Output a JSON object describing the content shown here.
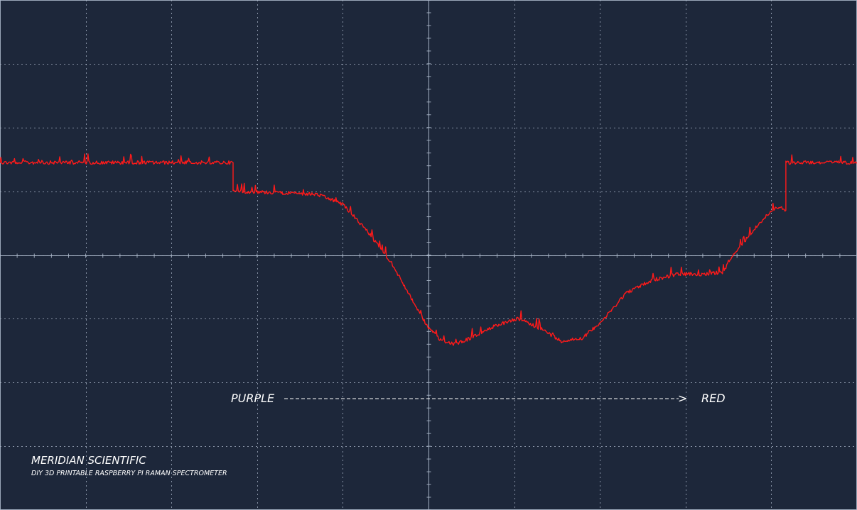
{
  "chart_data": {
    "type": "line",
    "title": "",
    "xlabel": "",
    "ylabel": "",
    "grid": true,
    "xlim": [
      0,
      10
    ],
    "ylim": [
      -4,
      4
    ],
    "divisions": {
      "x": 10,
      "y": 8
    },
    "colors": {
      "background": "#1d273a",
      "grid": "#aab6c8",
      "trace": "#ff1a1a",
      "text": "#ffffff"
    },
    "series": [
      {
        "x": [
          0,
          2.72,
          2.72,
          3.2,
          3.7,
          4.0,
          4.3,
          4.6,
          4.85,
          5.0,
          5.15,
          5.3,
          5.5,
          5.8,
          6.05,
          6.3,
          6.55,
          6.8,
          7.05,
          7.3,
          7.6,
          7.9,
          8.2,
          8.45,
          8.5,
          8.65,
          8.8,
          9.0,
          9.1,
          9.17,
          9.17,
          10
        ],
        "y": [
          1.45,
          1.45,
          1.0,
          0.98,
          0.95,
          0.8,
          0.35,
          -0.2,
          -0.8,
          -1.15,
          -1.35,
          -1.4,
          -1.3,
          -1.1,
          -1.0,
          -1.15,
          -1.35,
          -1.3,
          -1.0,
          -0.6,
          -0.4,
          -0.3,
          -0.3,
          -0.27,
          -0.1,
          0.15,
          0.4,
          0.7,
          0.75,
          0.7,
          1.45,
          1.45
        ]
      }
    ],
    "annotations": {
      "start": "PURPLE",
      "end": "RED",
      "arrow": ">"
    }
  },
  "branding": {
    "company": "MERIDIAN SCIENTIFIC",
    "tagline": "DIY 3D PRINTABLE RASPBERRY PI RAMAN SPECTROMETER"
  }
}
